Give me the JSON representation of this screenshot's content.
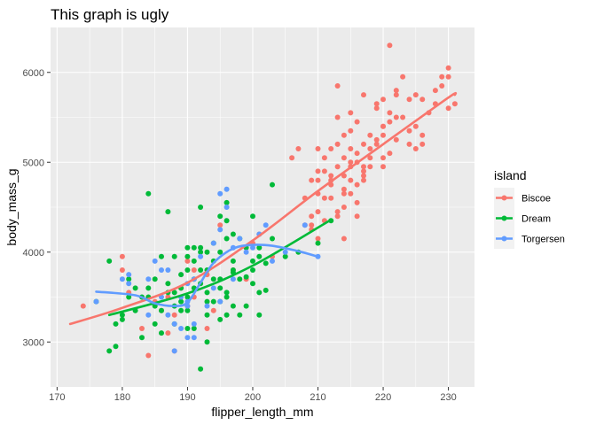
{
  "chart_data": {
    "type": "scatter",
    "title": "This graph is ugly",
    "xlabel": "flipper_length_mm",
    "ylabel": "body_mass_g",
    "xlim": [
      169,
      234
    ],
    "ylim": [
      2500,
      6500
    ],
    "xticks": [
      170,
      180,
      190,
      200,
      210,
      220,
      230
    ],
    "yticks": [
      3000,
      4000,
      5000,
      6000
    ],
    "grid": true,
    "legend": {
      "title": "island",
      "position": "right"
    },
    "series": [
      {
        "name": "Biscoe",
        "color": "#F8766D",
        "points": [
          [
            174,
            3400
          ],
          [
            180,
            3950
          ],
          [
            180,
            3800
          ],
          [
            181,
            3550
          ],
          [
            183,
            3150
          ],
          [
            184,
            2850
          ],
          [
            185,
            3450
          ],
          [
            186,
            3350
          ],
          [
            187,
            3500
          ],
          [
            187,
            3100
          ],
          [
            188,
            3300
          ],
          [
            188,
            2900
          ],
          [
            189,
            3600
          ],
          [
            190,
            3900
          ],
          [
            190,
            3400
          ],
          [
            191,
            3500
          ],
          [
            191,
            3800
          ],
          [
            193,
            3750
          ],
          [
            193,
            3150
          ],
          [
            194,
            3350
          ],
          [
            195,
            4300
          ],
          [
            197,
            3800
          ],
          [
            199,
            3700
          ],
          [
            200,
            4100
          ],
          [
            201,
            4200
          ],
          [
            203,
            3950
          ],
          [
            206,
            5050
          ],
          [
            207,
            5150
          ],
          [
            209,
            4300
          ],
          [
            209,
            4800
          ],
          [
            210,
            4450
          ],
          [
            210,
            4900
          ],
          [
            210,
            5150
          ],
          [
            210,
            4800
          ],
          [
            211,
            4350
          ],
          [
            211,
            4600
          ],
          [
            211,
            5050
          ],
          [
            212,
            4600
          ],
          [
            212,
            4750
          ],
          [
            212,
            5150
          ],
          [
            212,
            4850
          ],
          [
            213,
            4450
          ],
          [
            213,
            4950
          ],
          [
            213,
            5200
          ],
          [
            213,
            5500
          ],
          [
            214,
            5050
          ],
          [
            214,
            4850
          ],
          [
            214,
            5300
          ],
          [
            214,
            4650
          ],
          [
            215,
            5550
          ],
          [
            215,
            4950
          ],
          [
            215,
            5350
          ],
          [
            215,
            5150
          ],
          [
            215,
            4800
          ],
          [
            216,
            5100
          ],
          [
            216,
            5000
          ],
          [
            216,
            5450
          ],
          [
            216,
            4750
          ],
          [
            217,
            5200
          ],
          [
            217,
            4950
          ],
          [
            217,
            5750
          ],
          [
            217,
            4800
          ],
          [
            218,
            5300
          ],
          [
            218,
            5050
          ],
          [
            218,
            4950
          ],
          [
            219,
            5650
          ],
          [
            219,
            5250
          ],
          [
            220,
            5400
          ],
          [
            220,
            5300
          ],
          [
            220,
            4950
          ],
          [
            220,
            5050
          ],
          [
            221,
            5100
          ],
          [
            221,
            5450
          ],
          [
            222,
            5750
          ],
          [
            222,
            5250
          ],
          [
            223,
            5950
          ],
          [
            224,
            5350
          ],
          [
            225,
            5400
          ],
          [
            226,
            5300
          ],
          [
            228,
            5650
          ],
          [
            229,
            5950
          ],
          [
            230,
            5600
          ],
          [
            230,
            6050
          ],
          [
            231,
            5650
          ],
          [
            221,
            6300
          ],
          [
            222,
            5800
          ],
          [
            219,
            5600
          ],
          [
            208,
            4300
          ],
          [
            209,
            4400
          ],
          [
            213,
            4400
          ],
          [
            214,
            4700
          ],
          [
            215,
            5000
          ],
          [
            216,
            4400
          ],
          [
            217,
            4900
          ],
          [
            218,
            5150
          ],
          [
            219,
            5200
          ],
          [
            220,
            5400
          ],
          [
            221,
            5550
          ],
          [
            222,
            5500
          ],
          [
            223,
            5500
          ],
          [
            224,
            5700
          ],
          [
            225,
            5750
          ],
          [
            226,
            5700
          ],
          [
            227,
            5550
          ],
          [
            228,
            5800
          ],
          [
            229,
            5850
          ],
          [
            230,
            5950
          ],
          [
            224,
            5200
          ],
          [
            225,
            5150
          ],
          [
            226,
            5200
          ],
          [
            220,
            5700
          ],
          [
            217,
            4850
          ],
          [
            216,
            4550
          ],
          [
            215,
            4650
          ],
          [
            214,
            4500
          ],
          [
            212,
            4800
          ],
          [
            211,
            4900
          ],
          [
            210,
            4650
          ],
          [
            208,
            4600
          ],
          [
            213,
            5850
          ],
          [
            209,
            4250
          ],
          [
            210,
            4150
          ],
          [
            214,
            4150
          ]
        ],
        "smooth": [
          [
            172,
            3200
          ],
          [
            180,
            3380
          ],
          [
            190,
            3660
          ],
          [
            200,
            4130
          ],
          [
            210,
            4680
          ],
          [
            220,
            5200
          ],
          [
            230,
            5720
          ],
          [
            231,
            5750
          ]
        ]
      },
      {
        "name": "Dream",
        "color": "#00BA38",
        "points": [
          [
            178,
            2900
          ],
          [
            178,
            3900
          ],
          [
            179,
            3200
          ],
          [
            180,
            3300
          ],
          [
            181,
            3700
          ],
          [
            182,
            3350
          ],
          [
            183,
            3500
          ],
          [
            184,
            4650
          ],
          [
            184,
            3600
          ],
          [
            185,
            3700
          ],
          [
            185,
            3200
          ],
          [
            186,
            3350
          ],
          [
            186,
            3950
          ],
          [
            187,
            3650
          ],
          [
            187,
            4450
          ],
          [
            188,
            3400
          ],
          [
            188,
            3200
          ],
          [
            189,
            3350
          ],
          [
            189,
            3600
          ],
          [
            190,
            3500
          ],
          [
            190,
            3950
          ],
          [
            190,
            4050
          ],
          [
            190,
            3800
          ],
          [
            191,
            3700
          ],
          [
            191,
            3600
          ],
          [
            191,
            4050
          ],
          [
            192,
            3650
          ],
          [
            192,
            3800
          ],
          [
            192,
            4000
          ],
          [
            192,
            4050
          ],
          [
            193,
            3300
          ],
          [
            193,
            3450
          ],
          [
            193,
            3550
          ],
          [
            193,
            3800
          ],
          [
            193,
            4000
          ],
          [
            194,
            4100
          ],
          [
            194,
            3450
          ],
          [
            195,
            3600
          ],
          [
            195,
            3250
          ],
          [
            195,
            4000
          ],
          [
            195,
            3700
          ],
          [
            195,
            3450
          ],
          [
            196,
            3500
          ],
          [
            196,
            4350
          ],
          [
            196,
            4150
          ],
          [
            196,
            3550
          ],
          [
            196,
            3300
          ],
          [
            197,
            3900
          ],
          [
            197,
            3775
          ],
          [
            197,
            3400
          ],
          [
            198,
            3700
          ],
          [
            198,
            4150
          ],
          [
            199,
            3725
          ],
          [
            199,
            3400
          ],
          [
            200,
            3650
          ],
          [
            200,
            3900
          ],
          [
            200,
            3800
          ],
          [
            201,
            3550
          ],
          [
            201,
            4050
          ],
          [
            202,
            3875
          ],
          [
            202,
            3575
          ],
          [
            203,
            4150
          ],
          [
            203,
            4750
          ],
          [
            205,
            3950
          ],
          [
            207,
            4000
          ],
          [
            210,
            4100
          ],
          [
            212,
            4350
          ],
          [
            201,
            3300
          ],
          [
            199,
            4050
          ],
          [
            197,
            3800
          ],
          [
            196,
            4550
          ],
          [
            195,
            4400
          ],
          [
            194,
            3900
          ],
          [
            193,
            3000
          ],
          [
            192,
            2700
          ],
          [
            191,
            3150
          ],
          [
            190,
            3350
          ],
          [
            189,
            3750
          ],
          [
            188,
            3950
          ],
          [
            187,
            3550
          ],
          [
            186,
            3100
          ],
          [
            185,
            3400
          ],
          [
            184,
            3500
          ],
          [
            183,
            3050
          ],
          [
            182,
            3600
          ],
          [
            181,
            3500
          ],
          [
            180,
            3250
          ],
          [
            179,
            2950
          ],
          [
            176,
            3450
          ],
          [
            192,
            4500
          ],
          [
            191,
            3900
          ],
          [
            194,
            3700
          ],
          [
            197,
            4200
          ],
          [
            200,
            4400
          ],
          [
            201,
            3950
          ],
          [
            198,
            3300
          ],
          [
            190,
            3150
          ],
          [
            189,
            3450
          ],
          [
            188,
            3550
          ]
        ],
        "smooth": [
          [
            178,
            3300
          ],
          [
            190,
            3540
          ],
          [
            200,
            3850
          ],
          [
            212,
            4360
          ]
        ]
      },
      {
        "name": "Torgersen",
        "color": "#619CFF",
        "points": [
          [
            176,
            3450
          ],
          [
            180,
            3700
          ],
          [
            181,
            3650
          ],
          [
            181,
            3750
          ],
          [
            184,
            3700
          ],
          [
            184,
            3300
          ],
          [
            185,
            3900
          ],
          [
            186,
            3800
          ],
          [
            187,
            3800
          ],
          [
            187,
            3300
          ],
          [
            188,
            3200
          ],
          [
            188,
            2900
          ],
          [
            189,
            3500
          ],
          [
            190,
            3650
          ],
          [
            190,
            3450
          ],
          [
            190,
            3050
          ],
          [
            190,
            3400
          ],
          [
            191,
            3200
          ],
          [
            191,
            3050
          ],
          [
            191,
            3700
          ],
          [
            193,
            3400
          ],
          [
            194,
            4100
          ],
          [
            195,
            4650
          ],
          [
            195,
            4250
          ],
          [
            195,
            3450
          ],
          [
            196,
            4700
          ],
          [
            196,
            4500
          ],
          [
            197,
            4050
          ],
          [
            198,
            4150
          ],
          [
            199,
            4000
          ],
          [
            200,
            4050
          ],
          [
            201,
            4200
          ],
          [
            202,
            4300
          ],
          [
            203,
            3900
          ],
          [
            205,
            4000
          ],
          [
            208,
            4300
          ],
          [
            210,
            3950
          ],
          [
            186,
            3500
          ],
          [
            189,
            3150
          ],
          [
            192,
            3950
          ],
          [
            194,
            3600
          ],
          [
            197,
            3700
          ]
        ],
        "smooth": [
          [
            176,
            3560
          ],
          [
            182,
            3520
          ],
          [
            185,
            3430
          ],
          [
            188,
            3400
          ],
          [
            190,
            3440
          ],
          [
            192,
            3660
          ],
          [
            194,
            3880
          ],
          [
            197,
            4040
          ],
          [
            200,
            4080
          ],
          [
            203,
            4070
          ],
          [
            207,
            4010
          ],
          [
            210,
            3950
          ]
        ]
      }
    ]
  }
}
